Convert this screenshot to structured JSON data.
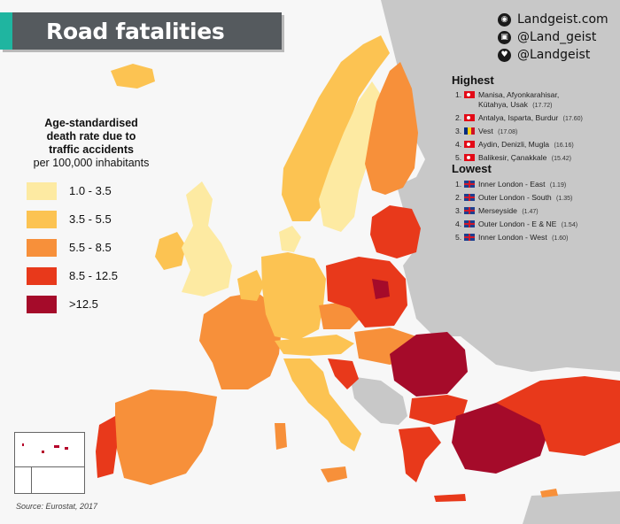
{
  "header": {
    "title": "Road fatalities"
  },
  "social": [
    {
      "icon": "globe-icon",
      "glyph": "◉",
      "text": "Landgeist.com"
    },
    {
      "icon": "instagram-icon",
      "glyph": "▣",
      "text": "@Land_geist"
    },
    {
      "icon": "twitter-icon",
      "glyph": "♥",
      "text": "@Landgeist"
    }
  ],
  "legend": {
    "title_line1": "Age-standardised",
    "title_line2": "death rate due to",
    "title_line3": "traffic accidents",
    "title_line4": "per 100,000 inhabitants",
    "items": [
      {
        "label": "1.0 - 3.5",
        "color": "#fdeaa2"
      },
      {
        "label": "3.5 - 5.5",
        "color": "#fcc352"
      },
      {
        "label": "5.5 - 8.5",
        "color": "#f7903a"
      },
      {
        "label": "8.5 - 12.5",
        "color": "#e8391b"
      },
      {
        "label": ">12.5",
        "color": "#a50b2a"
      }
    ]
  },
  "highest": {
    "heading": "Highest",
    "rows": [
      {
        "rank": "1.",
        "flag": "turkey",
        "name": "Manisa, Afyonkarahisar,",
        "name2": "Kütahya, Usak",
        "value": "(17.72)"
      },
      {
        "rank": "2.",
        "flag": "turkey",
        "name": "Antalya, Isparta, Burdur",
        "name2": "",
        "value": "(17.60)"
      },
      {
        "rank": "3.",
        "flag": "romania",
        "name": "Vest",
        "name2": "",
        "value": "(17.08)"
      },
      {
        "rank": "4.",
        "flag": "turkey",
        "name": "Aydin, Denizli, Mugla",
        "name2": "",
        "value": "(16.16)"
      },
      {
        "rank": "5.",
        "flag": "turkey",
        "name": "Balikesir, Çanakkale",
        "name2": "",
        "value": "(15.42)"
      }
    ]
  },
  "lowest": {
    "heading": "Lowest",
    "rows": [
      {
        "rank": "1.",
        "flag": "uk",
        "name": "Inner London - East",
        "value": "(1.19)"
      },
      {
        "rank": "2.",
        "flag": "uk",
        "name": "Outer London - South",
        "value": "(1.35)"
      },
      {
        "rank": "3.",
        "flag": "uk",
        "name": "Merseyside",
        "value": "(1.47)"
      },
      {
        "rank": "4.",
        "flag": "uk",
        "name": "Outer London - E & NE",
        "value": "(1.54)"
      },
      {
        "rank": "5.",
        "flag": "uk",
        "name": "Inner London - West",
        "value": "(1.60)"
      }
    ]
  },
  "source": "Source: Eurostat, 2017",
  "colors": {
    "no_data": "#c8c8c8",
    "background": "#f7f7f7",
    "accent": "#1fb5a0",
    "title_bg": "#555a5e"
  }
}
